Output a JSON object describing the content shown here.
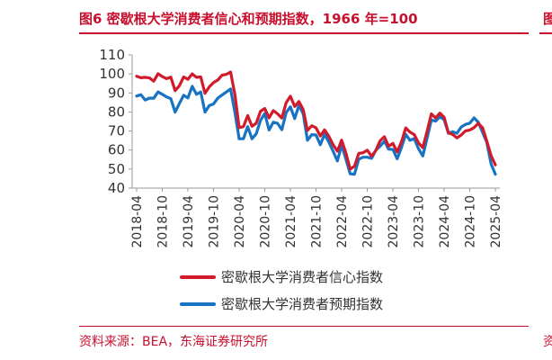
{
  "header": {
    "title": "图6  密歇根大学消费者信心和预期指数，1966 年=100",
    "side_title": "图"
  },
  "footer": {
    "source": "资料来源：BEA，东海证券研究所",
    "side_source": "资"
  },
  "colors": {
    "accent": "#c8102e",
    "sentiment_line": "#d11a2a",
    "expectations_line": "#1874c2"
  },
  "chart_data": {
    "type": "line",
    "title": "",
    "xlabel": "",
    "ylabel": "",
    "ylim": [
      40,
      110
    ],
    "yticks": [
      40,
      50,
      60,
      70,
      80,
      90,
      100,
      110
    ],
    "grid": false,
    "legend_position": "bottom",
    "xticks": [
      "2018-04",
      "2018-10",
      "2019-04",
      "2019-10",
      "2020-04",
      "2020-10",
      "2021-04",
      "2021-10",
      "2022-04",
      "2022-10",
      "2023-04",
      "2023-10",
      "2024-04",
      "2024-10",
      "2025-04"
    ],
    "x": [
      "2018-04",
      "2018-05",
      "2018-06",
      "2018-07",
      "2018-08",
      "2018-09",
      "2018-10",
      "2018-11",
      "2018-12",
      "2019-01",
      "2019-02",
      "2019-03",
      "2019-04",
      "2019-05",
      "2019-06",
      "2019-07",
      "2019-08",
      "2019-09",
      "2019-10",
      "2019-11",
      "2019-12",
      "2020-01",
      "2020-02",
      "2020-03",
      "2020-04",
      "2020-05",
      "2020-06",
      "2020-07",
      "2020-08",
      "2020-09",
      "2020-10",
      "2020-11",
      "2020-12",
      "2021-01",
      "2021-02",
      "2021-03",
      "2021-04",
      "2021-05",
      "2021-06",
      "2021-07",
      "2021-08",
      "2021-09",
      "2021-10",
      "2021-11",
      "2021-12",
      "2022-01",
      "2022-02",
      "2022-03",
      "2022-04",
      "2022-05",
      "2022-06",
      "2022-07",
      "2022-08",
      "2022-09",
      "2022-10",
      "2022-11",
      "2022-12",
      "2023-01",
      "2023-02",
      "2023-03",
      "2023-04",
      "2023-05",
      "2023-06",
      "2023-07",
      "2023-08",
      "2023-09",
      "2023-10",
      "2023-11",
      "2023-12",
      "2024-01",
      "2024-02",
      "2024-03",
      "2024-04",
      "2024-05",
      "2024-06",
      "2024-07",
      "2024-08",
      "2024-09",
      "2024-10",
      "2024-11",
      "2024-12",
      "2025-01",
      "2025-02",
      "2025-03",
      "2025-04"
    ],
    "series": [
      {
        "name": "密歇根大学消费者信心指数",
        "color": "#d11a2a",
        "values": [
          98.8,
          98.0,
          98.2,
          97.9,
          96.2,
          100.1,
          98.6,
          97.5,
          98.3,
          91.2,
          93.8,
          98.4,
          97.2,
          100.0,
          98.2,
          98.4,
          89.8,
          93.2,
          95.5,
          96.8,
          99.3,
          99.8,
          101.0,
          89.1,
          71.8,
          72.3,
          78.1,
          72.5,
          74.1,
          80.4,
          81.8,
          76.9,
          80.7,
          79.0,
          76.8,
          84.9,
          88.3,
          82.9,
          85.5,
          81.2,
          70.3,
          72.8,
          71.7,
          67.4,
          70.6,
          67.2,
          62.8,
          59.4,
          65.2,
          58.4,
          50.0,
          51.5,
          58.2,
          58.6,
          59.9,
          56.8,
          59.7,
          64.9,
          67.0,
          62.0,
          63.5,
          59.0,
          64.2,
          71.6,
          69.4,
          68.1,
          63.8,
          61.3,
          69.7,
          79.0,
          76.9,
          79.4,
          77.2,
          69.1,
          68.2,
          66.4,
          67.9,
          70.1,
          70.5,
          71.8,
          74.0,
          71.7,
          64.7,
          57.0,
          52.2
        ]
      },
      {
        "name": "密歇根大学消费者预期指数",
        "color": "#1874c2",
        "values": [
          88.4,
          89.1,
          86.3,
          87.3,
          87.2,
          90.5,
          89.3,
          87.9,
          87.0,
          79.9,
          84.4,
          88.8,
          87.4,
          93.5,
          89.3,
          90.5,
          79.9,
          83.4,
          84.2,
          87.3,
          88.9,
          90.5,
          92.1,
          79.7,
          65.9,
          65.9,
          72.3,
          65.9,
          68.5,
          75.6,
          79.2,
          70.5,
          74.6,
          74.0,
          70.7,
          79.7,
          82.7,
          76.5,
          83.5,
          79.0,
          65.1,
          68.1,
          67.9,
          62.8,
          68.3,
          64.1,
          59.4,
          54.3,
          62.5,
          55.2,
          47.5,
          47.3,
          55.2,
          56.2,
          56.2,
          55.6,
          59.9,
          62.0,
          64.7,
          60.5,
          60.3,
          55.4,
          61.3,
          68.3,
          65.1,
          66.0,
          60.7,
          56.9,
          66.1,
          75.8,
          75.2,
          77.4,
          76.0,
          68.8,
          69.6,
          68.8,
          72.1,
          73.5,
          74.1,
          76.9,
          74.6,
          69.3,
          64.0,
          52.6,
          47.3
        ]
      }
    ]
  }
}
